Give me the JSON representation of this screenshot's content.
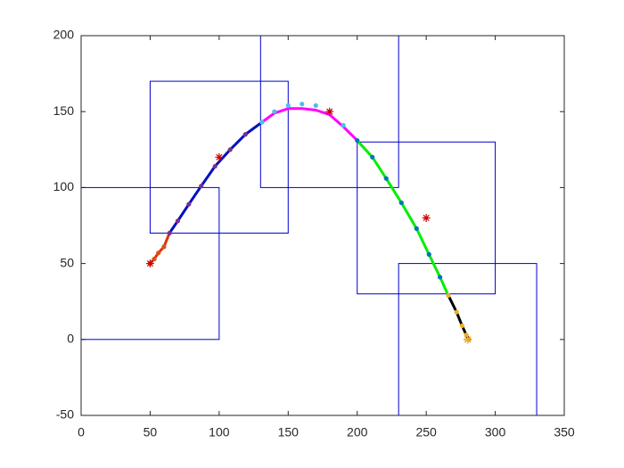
{
  "chart_data": {
    "type": "line",
    "xlim": [
      0,
      350
    ],
    "xticks": [
      0,
      50,
      100,
      150,
      200,
      250,
      300,
      350
    ],
    "ylim": [
      -50,
      200
    ],
    "yticks": [
      -50,
      0,
      50,
      100,
      150,
      200
    ],
    "boxes": [
      {
        "color": "#0000cc",
        "x": [
          0,
          100
        ],
        "y": [
          0,
          100
        ]
      },
      {
        "color": "#0000cc",
        "x": [
          50,
          150
        ],
        "y": [
          70,
          170
        ]
      },
      {
        "color": "#0000cc",
        "x": [
          130,
          230
        ],
        "y": [
          100,
          200
        ]
      },
      {
        "color": "#0000cc",
        "x": [
          200,
          300
        ],
        "y": [
          30,
          130
        ]
      },
      {
        "color": "#0000cc",
        "x": [
          230,
          330
        ],
        "y": [
          -50,
          50
        ]
      }
    ],
    "series": [
      {
        "color": "#e03010",
        "x": [
          50,
          53,
          56,
          60,
          64
        ],
        "values": [
          50,
          53,
          57,
          61,
          70
        ]
      },
      {
        "color": "#0010c0",
        "x": [
          64,
          70,
          78,
          87,
          97,
          108,
          119,
          131
        ],
        "values": [
          70,
          78,
          89,
          101,
          114,
          125,
          135,
          143
        ]
      },
      {
        "color": "#ff00ff",
        "x": [
          131,
          140,
          150,
          160,
          170,
          180,
          190,
          200
        ],
        "values": [
          143,
          149,
          152,
          152,
          151,
          148,
          140,
          131
        ]
      },
      {
        "color": "#00ee00",
        "x": [
          200,
          211,
          221,
          232,
          243,
          252,
          260,
          266
        ],
        "values": [
          131,
          120,
          106,
          90,
          73,
          56,
          41,
          29
        ]
      },
      {
        "color": "#000000",
        "x": [
          266,
          272,
          276,
          279,
          281
        ],
        "values": [
          29,
          18,
          9,
          3,
          0
        ]
      }
    ],
    "points": [
      {
        "color": "#d95319",
        "x": [
          50,
          53,
          56,
          60
        ],
        "values": [
          50,
          53,
          57,
          61
        ]
      },
      {
        "color": "#7e2f8e",
        "x": [
          64,
          70,
          78,
          87,
          97,
          108,
          119
        ],
        "values": [
          70,
          78,
          89,
          101,
          114,
          125,
          135
        ]
      },
      {
        "color": "#4dbeee",
        "x": [
          131,
          140,
          150,
          160,
          170,
          180,
          190
        ],
        "values": [
          143,
          150,
          154,
          155,
          154,
          150,
          141
        ]
      },
      {
        "color": "#0072bd",
        "x": [
          200,
          211,
          221,
          232,
          243,
          252,
          260
        ],
        "values": [
          131,
          120,
          106,
          90,
          73,
          56,
          41
        ]
      },
      {
        "color": "#edb120",
        "x": [
          266,
          272,
          276,
          279,
          281
        ],
        "values": [
          29,
          18,
          9,
          3,
          0
        ]
      }
    ],
    "stars": [
      {
        "color": "#cc0000",
        "x": [
          50,
          100,
          180,
          250,
          280
        ],
        "values": [
          50,
          120,
          150,
          80,
          0
        ]
      },
      {
        "color": "#edb120",
        "x": [
          280
        ],
        "values": [
          0
        ]
      }
    ]
  }
}
